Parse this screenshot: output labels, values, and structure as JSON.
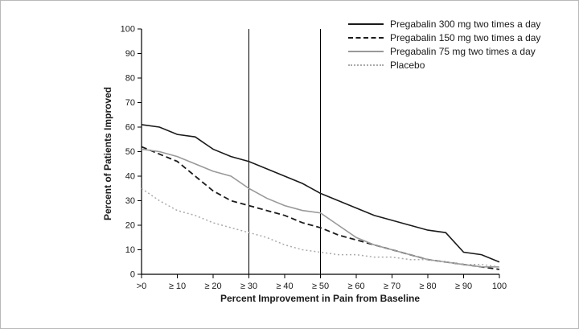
{
  "chart_data": {
    "type": "line",
    "title": "",
    "xlabel": "Percent Improvement in Pain from Baseline",
    "ylabel": "Percent of Patients Improved",
    "xlim": [
      0,
      100
    ],
    "ylim": [
      0,
      100
    ],
    "grid": false,
    "legend_position": "top-right",
    "x_tick_values": [
      0,
      10,
      20,
      30,
      40,
      50,
      60,
      70,
      80,
      90,
      100
    ],
    "x_tick_labels": [
      ">0",
      "≥ 10",
      "≥ 20",
      "≥ 30",
      "≥ 40",
      "≥ 50",
      "≥ 60",
      "≥ 70",
      "≥ 80",
      "≥ 90",
      "100"
    ],
    "y_tick_values": [
      0,
      10,
      20,
      30,
      40,
      50,
      60,
      70,
      80,
      90,
      100
    ],
    "y_tick_labels": [
      "0",
      "10",
      "20",
      "30",
      "40",
      "50",
      "60",
      "70",
      "80",
      "90",
      "100"
    ],
    "reference_lines_x": [
      30,
      50
    ],
    "x": [
      0,
      5,
      10,
      15,
      20,
      25,
      30,
      35,
      40,
      45,
      50,
      55,
      60,
      65,
      70,
      75,
      80,
      85,
      90,
      95,
      100
    ],
    "series": [
      {
        "name": "Pregabalin 300 mg two times a day",
        "style": "solid",
        "color": "#1a1a1a",
        "values": [
          61,
          60,
          57,
          56,
          51,
          48,
          46,
          43,
          40,
          37,
          33,
          30,
          27,
          24,
          22,
          20,
          18,
          17,
          9,
          8,
          5
        ]
      },
      {
        "name": "Pregabalin 150 mg two times a day",
        "style": "dashed",
        "color": "#1a1a1a",
        "values": [
          52,
          49,
          46,
          40,
          34,
          30,
          28,
          26,
          24,
          21,
          19,
          16,
          14,
          12,
          10,
          8,
          6,
          5,
          4,
          3,
          2
        ]
      },
      {
        "name": "Pregabalin 75 mg two times a day",
        "style": "solid",
        "color": "#999999",
        "values": [
          51,
          50,
          48,
          45,
          42,
          40,
          35,
          31,
          28,
          26,
          25,
          20,
          15,
          12,
          10,
          8,
          6,
          5,
          4,
          3,
          3
        ]
      },
      {
        "name": "Placebo",
        "style": "dotted",
        "color": "#aaaaaa",
        "values": [
          35,
          30,
          26,
          24,
          21,
          19,
          17,
          15,
          12,
          10,
          9,
          8,
          8,
          7,
          7,
          6,
          6,
          5,
          4,
          4,
          3
        ]
      }
    ]
  }
}
